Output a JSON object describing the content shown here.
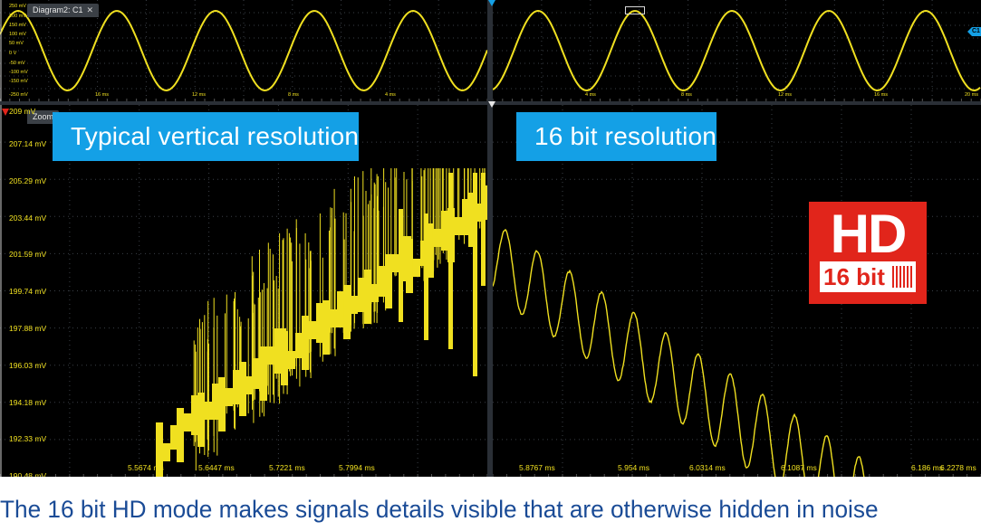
{
  "top_left": {
    "tab_title": "Diagram2: C1",
    "tab_close": "✕",
    "y_labels": [
      "250 mV",
      "200 mV",
      "150 mV",
      "100 mV",
      "50 mV",
      "0 V",
      "-50 mV",
      "-100 mV",
      "-150 mV",
      "-250 mV"
    ],
    "x_labels": [
      "16 ms",
      "12 ms",
      "8 ms",
      "4 ms"
    ]
  },
  "top_right": {
    "x_labels": [
      "4 ms",
      "8 ms",
      "12 ms",
      "16 ms",
      "20 ms"
    ],
    "channel_marker": "C1"
  },
  "zoom_left": {
    "tab_title": "Zoom",
    "banner": "Typical vertical resolution",
    "top_label": "209 mV",
    "y_labels": [
      "207.14 mV",
      "205.29 mV",
      "203.44 mV",
      "201.59 mV",
      "199.74 mV",
      "197.88 mV",
      "196.03 mV",
      "194.18 mV",
      "192.33 mV",
      "190.48 mV"
    ],
    "x_labels": [
      "5.5674 ms",
      "5.6447 ms",
      "5.7221 ms",
      "5.7994 ms"
    ]
  },
  "zoom_right": {
    "banner": "16 bit resolution",
    "x_labels": [
      "5.8767 ms",
      "5.954 ms",
      "6.0314 ms",
      "6.1087 ms",
      "6.186 ms",
      "6.2278 ms"
    ]
  },
  "badge": {
    "hd": "HD",
    "bit": "16 bit"
  },
  "caption": "The 16 bit HD mode makes signals details visible that are otherwise hidden in noise",
  "colors": {
    "trace": "#f0e020",
    "banner": "#14a0e6",
    "badge": "#e1251b",
    "caption": "#1a4b96"
  }
}
